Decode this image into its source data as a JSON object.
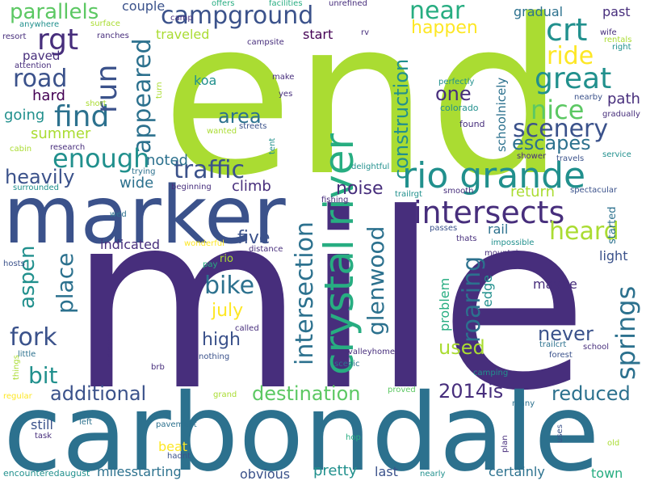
{
  "colors": {
    "background": "#ffffff",
    "palette": [
      "#440154",
      "#472e7c",
      "#3b528b",
      "#2c718e",
      "#21908d",
      "#27ad81",
      "#5cc863",
      "#aadc32",
      "#fde725"
    ]
  },
  "words": [
    "mile",
    "end",
    "marker",
    "carbondale",
    "crystal river",
    "rio grande",
    "intersects",
    "campground",
    "great",
    "scenery",
    "crt",
    "rgt",
    "find",
    "road",
    "run",
    "appeared",
    "traffic",
    "enough",
    "springs",
    "roaring",
    "glenwood",
    "intersection",
    "aspen",
    "place",
    "fork",
    "bit",
    "bike",
    "additional",
    "destination",
    "2014is",
    "reduced",
    "near",
    "parallels",
    "ride",
    "heard",
    "nice",
    "escapes",
    "construction",
    "noise",
    "used",
    "never",
    "high",
    "july",
    "five",
    "area",
    "one",
    "heavily",
    "noted",
    "wide",
    "climb",
    "path",
    "return",
    "happen",
    "summer",
    "going",
    "hard",
    "couple",
    "traveled",
    "start",
    "koa",
    "schoolnicely",
    "colorado",
    "found",
    "gradual",
    "past",
    "indicated",
    "problem",
    "maybe",
    "light",
    "edge",
    "rail",
    "started",
    "pretty",
    "last",
    "certainly",
    "town",
    "obvious",
    "milesstarting",
    "still",
    "beat",
    "left",
    "hadnt",
    "pavement",
    "task",
    "encounteredaugust",
    "nearly",
    "many",
    "plan",
    "uses",
    "old",
    "hop",
    "proved",
    "grand",
    "regular",
    "things",
    "little",
    "nothing",
    "called",
    "brb",
    "indicate",
    "scenic",
    "valleyhome",
    "trailcrt",
    "school",
    "forest",
    "camping",
    "mountain",
    "impossible",
    "thats",
    "passes",
    "smooth",
    "trailrgt",
    "fishing",
    "delightful",
    "tent",
    "streets",
    "wanted",
    "research",
    "cabin",
    "surrounded",
    "trying",
    "beginning",
    "wed",
    "wonderful",
    "pay",
    "rio",
    "distance",
    "hosts",
    "shower",
    "travels",
    "service",
    "spectacular",
    "nearby",
    "gradually",
    "wife",
    "rentals",
    "right",
    "perfectly",
    "make",
    "yes",
    "turn",
    "campsite",
    "rv",
    "unrefined",
    "facilities",
    "offers",
    "camp",
    "anywhere",
    "surface",
    "ranches",
    "resort",
    "attention",
    "paved",
    "short"
  ]
}
